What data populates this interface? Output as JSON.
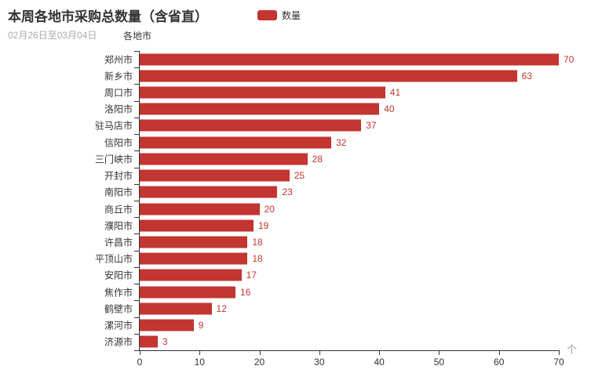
{
  "header": {
    "title": "本周各地市采购总数量（含省直）",
    "subtitle": "02月26日至03月04日"
  },
  "legend": {
    "label": "数量",
    "color": "#c23531"
  },
  "chart_data": {
    "type": "bar",
    "orientation": "horizontal",
    "title": "本周各地市采购总数量（含省直）",
    "subtitle": "02月26日至03月04日",
    "series_name": "数量",
    "category_axis_name": "各地市",
    "categories": [
      "郑州市",
      "新乡市",
      "周口市",
      "洛阳市",
      "驻马店市",
      "信阳市",
      "三门峡市",
      "开封市",
      "南阳市",
      "商丘市",
      "濮阳市",
      "许昌市",
      "平顶山市",
      "安阳市",
      "焦作市",
      "鹤壁市",
      "漯河市",
      "济源市"
    ],
    "values": [
      70,
      63,
      41,
      40,
      37,
      32,
      28,
      25,
      23,
      20,
      19,
      18,
      18,
      17,
      16,
      12,
      9,
      3
    ],
    "value_axis": {
      "min": 0,
      "max": 70,
      "ticks": [
        0,
        10,
        20,
        30,
        40,
        50,
        60,
        70
      ],
      "unit": "个"
    },
    "bar_color": "#c23531",
    "value_label_color": "#c23531",
    "grid": false,
    "legend_position": "top-center"
  }
}
